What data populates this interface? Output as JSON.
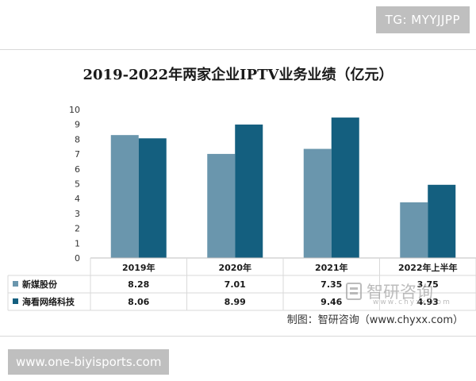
{
  "badge_top": "TG: MYYJJPP",
  "footer_url": "www.one-biyisports.com",
  "source_text": "制图：智研咨询（www.chyxx.com）",
  "watermark": {
    "brand": "智研咨询",
    "url": "www.chyxx.com",
    "icon": "chyxx-logo-icon"
  },
  "colors": {
    "series1": "#6a96ad",
    "series2": "#145f7f",
    "grid": "#d9d9d9"
  },
  "chart_data": {
    "type": "bar",
    "title": "2019-2022年两家企业IPTV业务业绩（亿元）",
    "categories": [
      "2019年",
      "2020年",
      "2021年",
      "2022年上半年"
    ],
    "series": [
      {
        "name": "新媒股份",
        "values": [
          8.28,
          7.01,
          7.35,
          3.75
        ],
        "labels": [
          "8.28",
          "7.01",
          "7.35",
          "3.75"
        ]
      },
      {
        "name": "海看网络科技",
        "values": [
          8.06,
          8.99,
          9.46,
          4.93
        ],
        "labels": [
          "8.06",
          "8.99",
          "9.46",
          "4.93"
        ]
      }
    ],
    "yticks": [
      "0",
      "1",
      "2",
      "3",
      "4",
      "5",
      "6",
      "7",
      "8",
      "9",
      "10"
    ],
    "ylim": [
      0,
      10
    ],
    "legend": "data-table-left",
    "grid": false
  }
}
